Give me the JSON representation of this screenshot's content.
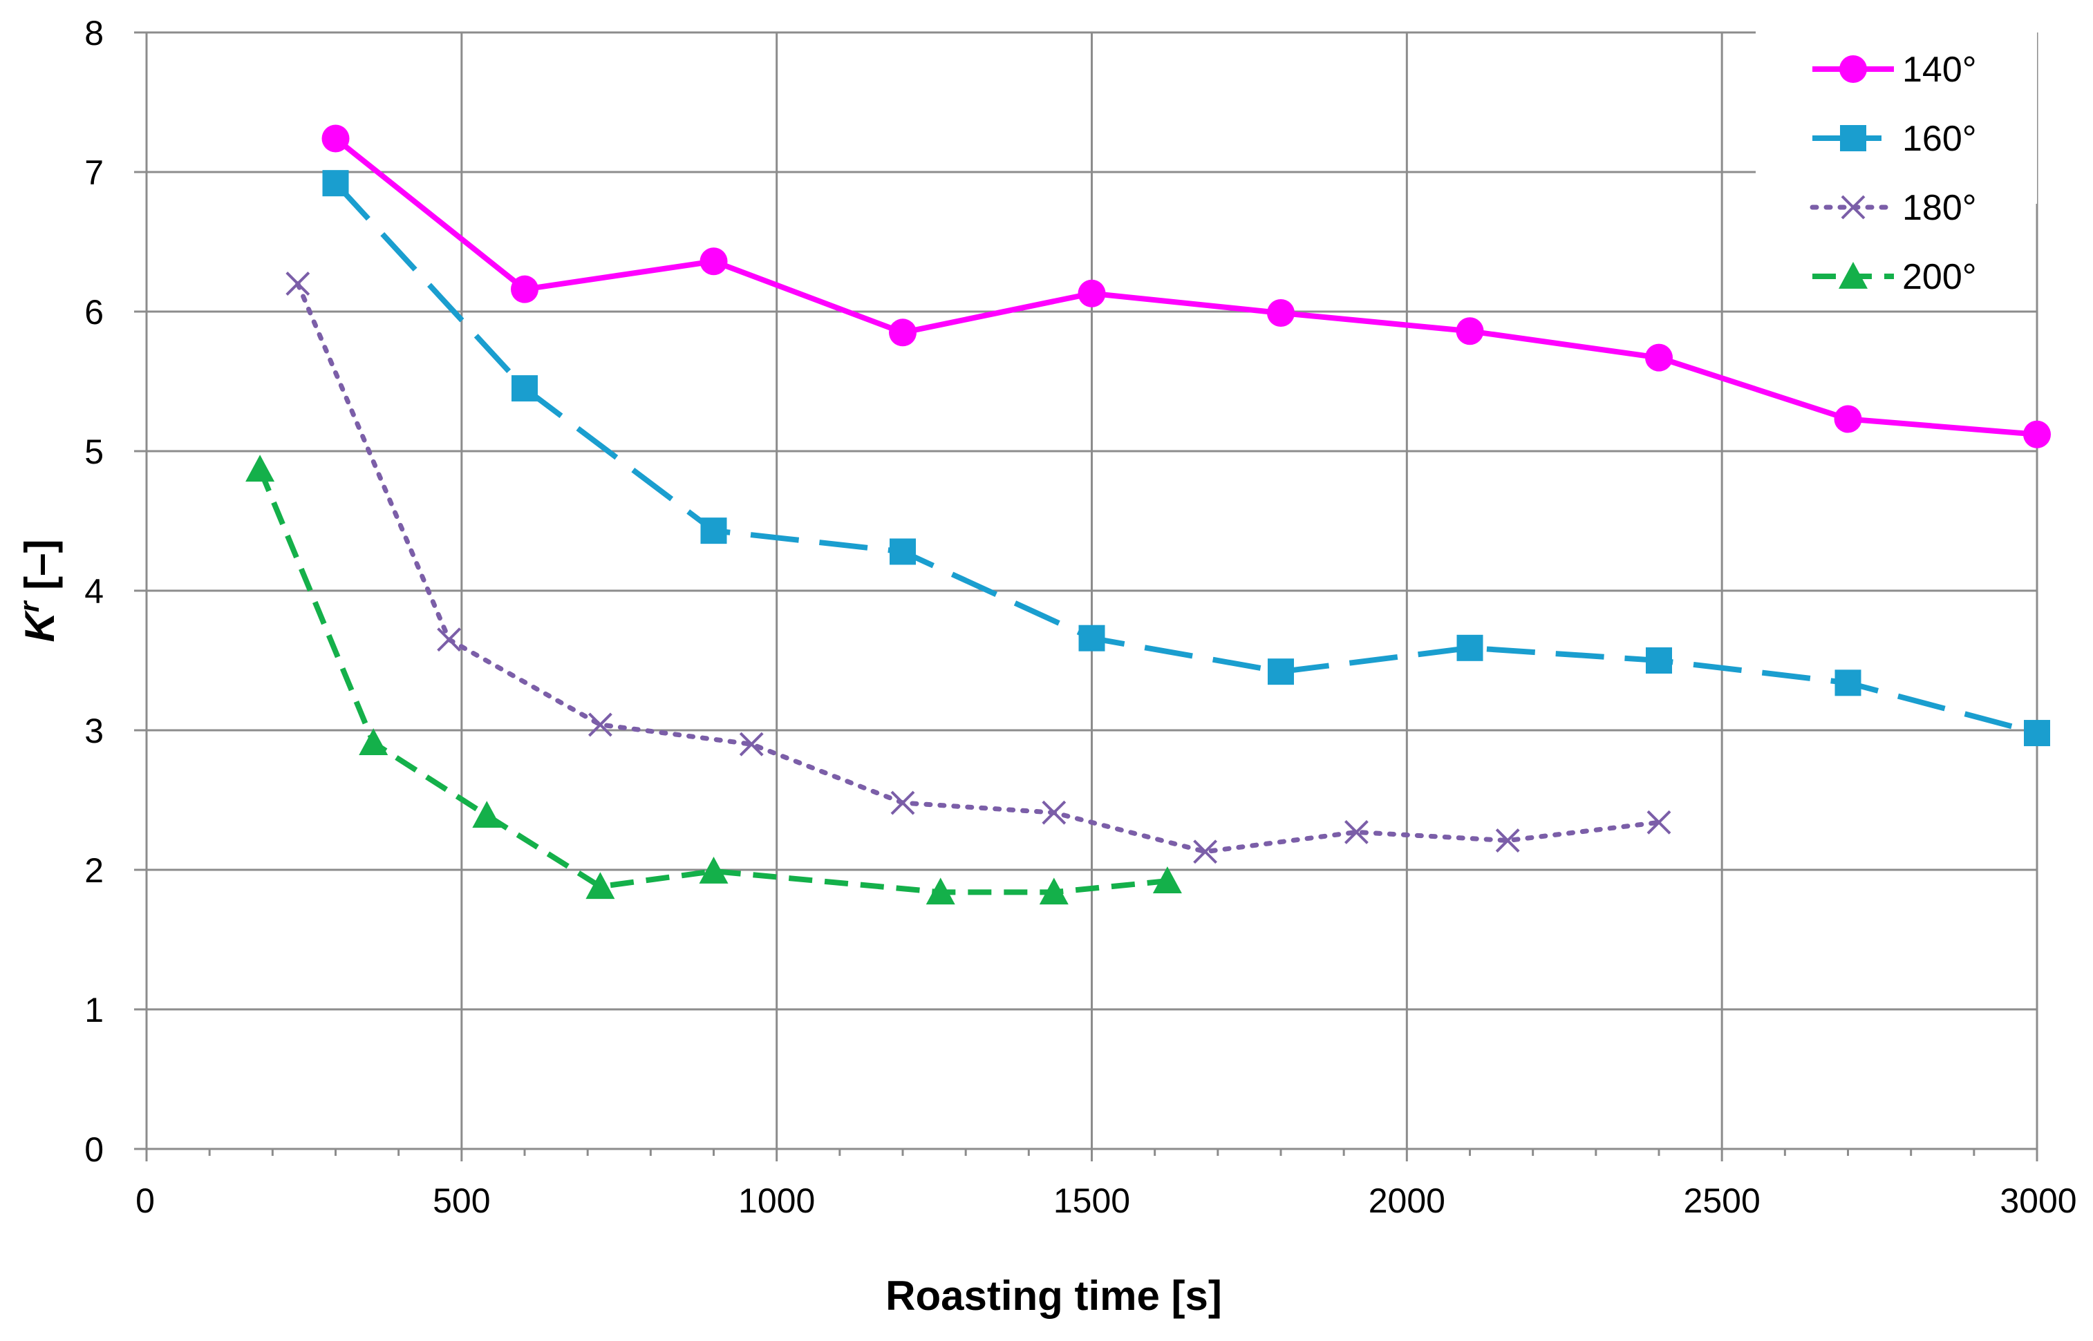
{
  "chart_data": {
    "type": "line",
    "xlabel": "Roasting time [s]",
    "ylabel_main": "K",
    "ylabel_sup": "r",
    "ylabel_tail": " [–]",
    "xlim": [
      0,
      3000
    ],
    "ylim": [
      0,
      8
    ],
    "xticks": [
      0,
      500,
      1000,
      1500,
      2000,
      2500,
      3000
    ],
    "yticks": [
      0,
      1,
      2,
      3,
      4,
      5,
      6,
      7,
      8
    ],
    "x_minor_step": 100,
    "grid": true,
    "legend_position": "top-right",
    "series": [
      {
        "name": "140°",
        "color": "#ff00ff",
        "marker": "circle",
        "line_style": "solid",
        "x": [
          300,
          600,
          900,
          1200,
          1500,
          1800,
          2100,
          2400,
          2700,
          3000
        ],
        "y": [
          7.24,
          6.16,
          6.36,
          5.85,
          6.13,
          5.99,
          5.86,
          5.67,
          5.23,
          5.12
        ]
      },
      {
        "name": "160°",
        "color": "#1a9ecf",
        "marker": "square",
        "line_style": "long-dash",
        "x": [
          300,
          600,
          900,
          1200,
          1500,
          1800,
          2100,
          2400,
          2700,
          3000
        ],
        "y": [
          6.92,
          5.45,
          4.43,
          4.28,
          3.66,
          3.42,
          3.59,
          3.5,
          3.34,
          2.98
        ]
      },
      {
        "name": "180°",
        "color": "#7b5ea8",
        "marker": "x",
        "line_style": "dotted",
        "x": [
          240,
          480,
          720,
          960,
          1200,
          1440,
          1680,
          1920,
          2160,
          2400
        ],
        "y": [
          6.2,
          3.65,
          3.04,
          2.9,
          2.48,
          2.41,
          2.13,
          2.27,
          2.21,
          2.34
        ]
      },
      {
        "name": "200°",
        "color": "#14b04a",
        "marker": "triangle",
        "line_style": "dashed",
        "x": [
          180,
          360,
          540,
          720,
          900,
          1260,
          1440,
          1620
        ],
        "y": [
          4.87,
          2.91,
          2.39,
          1.88,
          1.99,
          1.84,
          1.84,
          1.92
        ]
      }
    ]
  }
}
